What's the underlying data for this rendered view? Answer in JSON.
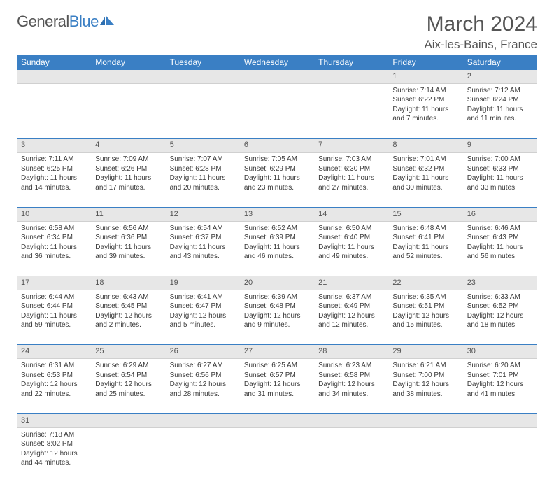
{
  "brand": {
    "part1": "General",
    "part2": "Blue"
  },
  "title": "March 2024",
  "location": "Aix-les-Bains, France",
  "colors": {
    "header_bg": "#3a7fc4",
    "daynum_bg": "#e7e7e7",
    "sep": "#3a7fc4",
    "text": "#3a3a3a"
  },
  "weekdays": [
    "Sunday",
    "Monday",
    "Tuesday",
    "Wednesday",
    "Thursday",
    "Friday",
    "Saturday"
  ],
  "weeks": [
    [
      null,
      null,
      null,
      null,
      null,
      {
        "n": "1",
        "sr": "7:14 AM",
        "ss": "6:22 PM",
        "dl": "11 hours and 7 minutes."
      },
      {
        "n": "2",
        "sr": "7:12 AM",
        "ss": "6:24 PM",
        "dl": "11 hours and 11 minutes."
      }
    ],
    [
      {
        "n": "3",
        "sr": "7:11 AM",
        "ss": "6:25 PM",
        "dl": "11 hours and 14 minutes."
      },
      {
        "n": "4",
        "sr": "7:09 AM",
        "ss": "6:26 PM",
        "dl": "11 hours and 17 minutes."
      },
      {
        "n": "5",
        "sr": "7:07 AM",
        "ss": "6:28 PM",
        "dl": "11 hours and 20 minutes."
      },
      {
        "n": "6",
        "sr": "7:05 AM",
        "ss": "6:29 PM",
        "dl": "11 hours and 23 minutes."
      },
      {
        "n": "7",
        "sr": "7:03 AM",
        "ss": "6:30 PM",
        "dl": "11 hours and 27 minutes."
      },
      {
        "n": "8",
        "sr": "7:01 AM",
        "ss": "6:32 PM",
        "dl": "11 hours and 30 minutes."
      },
      {
        "n": "9",
        "sr": "7:00 AM",
        "ss": "6:33 PM",
        "dl": "11 hours and 33 minutes."
      }
    ],
    [
      {
        "n": "10",
        "sr": "6:58 AM",
        "ss": "6:34 PM",
        "dl": "11 hours and 36 minutes."
      },
      {
        "n": "11",
        "sr": "6:56 AM",
        "ss": "6:36 PM",
        "dl": "11 hours and 39 minutes."
      },
      {
        "n": "12",
        "sr": "6:54 AM",
        "ss": "6:37 PM",
        "dl": "11 hours and 43 minutes."
      },
      {
        "n": "13",
        "sr": "6:52 AM",
        "ss": "6:39 PM",
        "dl": "11 hours and 46 minutes."
      },
      {
        "n": "14",
        "sr": "6:50 AM",
        "ss": "6:40 PM",
        "dl": "11 hours and 49 minutes."
      },
      {
        "n": "15",
        "sr": "6:48 AM",
        "ss": "6:41 PM",
        "dl": "11 hours and 52 minutes."
      },
      {
        "n": "16",
        "sr": "6:46 AM",
        "ss": "6:43 PM",
        "dl": "11 hours and 56 minutes."
      }
    ],
    [
      {
        "n": "17",
        "sr": "6:44 AM",
        "ss": "6:44 PM",
        "dl": "11 hours and 59 minutes."
      },
      {
        "n": "18",
        "sr": "6:43 AM",
        "ss": "6:45 PM",
        "dl": "12 hours and 2 minutes."
      },
      {
        "n": "19",
        "sr": "6:41 AM",
        "ss": "6:47 PM",
        "dl": "12 hours and 5 minutes."
      },
      {
        "n": "20",
        "sr": "6:39 AM",
        "ss": "6:48 PM",
        "dl": "12 hours and 9 minutes."
      },
      {
        "n": "21",
        "sr": "6:37 AM",
        "ss": "6:49 PM",
        "dl": "12 hours and 12 minutes."
      },
      {
        "n": "22",
        "sr": "6:35 AM",
        "ss": "6:51 PM",
        "dl": "12 hours and 15 minutes."
      },
      {
        "n": "23",
        "sr": "6:33 AM",
        "ss": "6:52 PM",
        "dl": "12 hours and 18 minutes."
      }
    ],
    [
      {
        "n": "24",
        "sr": "6:31 AM",
        "ss": "6:53 PM",
        "dl": "12 hours and 22 minutes."
      },
      {
        "n": "25",
        "sr": "6:29 AM",
        "ss": "6:54 PM",
        "dl": "12 hours and 25 minutes."
      },
      {
        "n": "26",
        "sr": "6:27 AM",
        "ss": "6:56 PM",
        "dl": "12 hours and 28 minutes."
      },
      {
        "n": "27",
        "sr": "6:25 AM",
        "ss": "6:57 PM",
        "dl": "12 hours and 31 minutes."
      },
      {
        "n": "28",
        "sr": "6:23 AM",
        "ss": "6:58 PM",
        "dl": "12 hours and 34 minutes."
      },
      {
        "n": "29",
        "sr": "6:21 AM",
        "ss": "7:00 PM",
        "dl": "12 hours and 38 minutes."
      },
      {
        "n": "30",
        "sr": "6:20 AM",
        "ss": "7:01 PM",
        "dl": "12 hours and 41 minutes."
      }
    ],
    [
      {
        "n": "31",
        "sr": "7:18 AM",
        "ss": "8:02 PM",
        "dl": "12 hours and 44 minutes."
      },
      null,
      null,
      null,
      null,
      null,
      null
    ]
  ],
  "labels": {
    "sunrise": "Sunrise:",
    "sunset": "Sunset:",
    "daylight": "Daylight:"
  }
}
